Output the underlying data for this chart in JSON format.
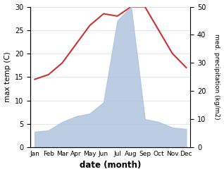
{
  "months": [
    "Jan",
    "Feb",
    "Mar",
    "Apr",
    "May",
    "Jun",
    "Jul",
    "Aug",
    "Sep",
    "Oct",
    "Nov",
    "Dec"
  ],
  "temperature": [
    14.5,
    15.5,
    18.0,
    22.0,
    26.0,
    28.5,
    28.0,
    30.0,
    30.0,
    25.0,
    20.0,
    17.0
  ],
  "precipitation": [
    5.5,
    6.0,
    9.0,
    11.0,
    12.0,
    16.0,
    45.0,
    50.0,
    10.0,
    9.0,
    7.0,
    6.5
  ],
  "temp_color": "#cc3333",
  "precip_color": "#b0c4de",
  "temp_ylim": [
    0,
    30
  ],
  "precip_ylim": [
    0,
    50
  ],
  "xlabel": "date (month)",
  "ylabel_left": "max temp (C)",
  "ylabel_right": "med. precipitation (kg/m2)",
  "temp_yticks": [
    0,
    5,
    10,
    15,
    20,
    25,
    30
  ],
  "precip_yticks": [
    0,
    10,
    20,
    30,
    40,
    50
  ],
  "grid_color": "#dddddd"
}
